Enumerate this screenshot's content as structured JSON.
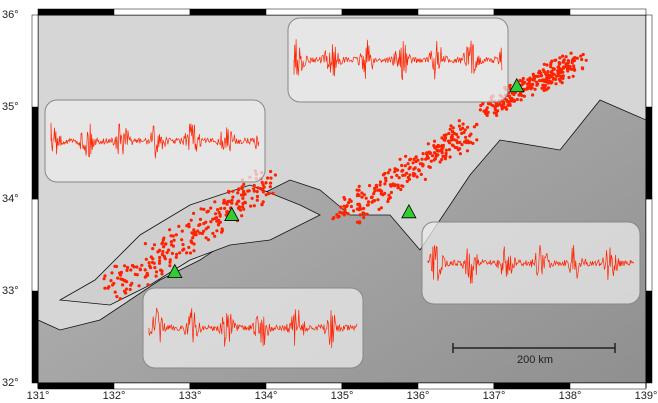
{
  "map": {
    "xlim": [
      131,
      139
    ],
    "ylim": [
      32,
      36
    ],
    "xticks": [
      {
        "value": 131,
        "label": "131°"
      },
      {
        "value": 132,
        "label": "132°"
      },
      {
        "value": 133,
        "label": "133°"
      },
      {
        "value": 134,
        "label": "134°"
      },
      {
        "value": 135,
        "label": "135°"
      },
      {
        "value": 136,
        "label": "136°"
      },
      {
        "value": 137,
        "label": "137°"
      },
      {
        "value": 138,
        "label": "138°"
      },
      {
        "value": 139,
        "label": "139°"
      }
    ],
    "yticks": [
      {
        "value": 32,
        "label": "32°"
      },
      {
        "value": 33,
        "label": "33°"
      },
      {
        "value": 34,
        "label": "34°"
      },
      {
        "value": 35,
        "label": "35°"
      },
      {
        "value": 36,
        "label": "36°"
      }
    ],
    "stations": [
      {
        "lon": 132.8,
        "lat": 33.2
      },
      {
        "lon": 133.55,
        "lat": 33.82
      },
      {
        "lon": 135.88,
        "lat": 33.85
      },
      {
        "lon": 137.3,
        "lat": 35.22
      }
    ],
    "station_color": "#33cc33",
    "tremor_color": "#ff2200",
    "scale_label": "200 km"
  }
}
